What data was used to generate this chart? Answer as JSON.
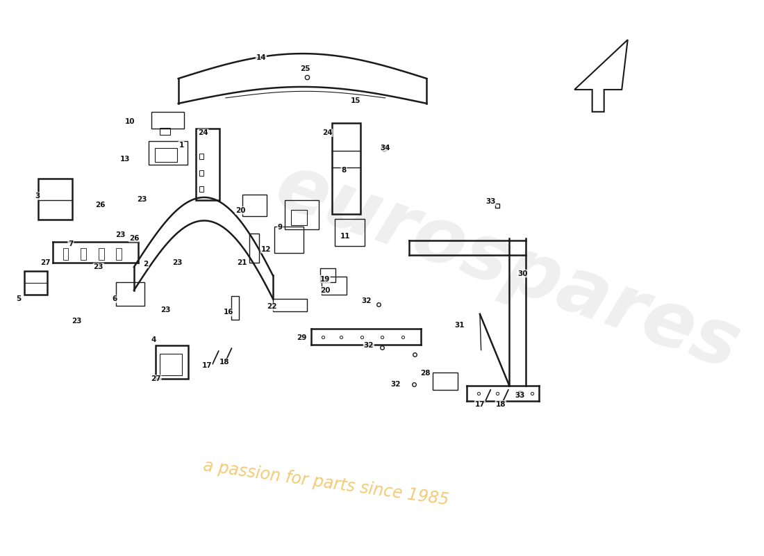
{
  "bg_color": "#ffffff",
  "watermark_text1": "eurospares",
  "watermark_text2": "a passion for parts since 1985",
  "watermark_color": "#d0d0d0",
  "line_color": "#1a1a1a",
  "label_color": "#1a1a1a"
}
